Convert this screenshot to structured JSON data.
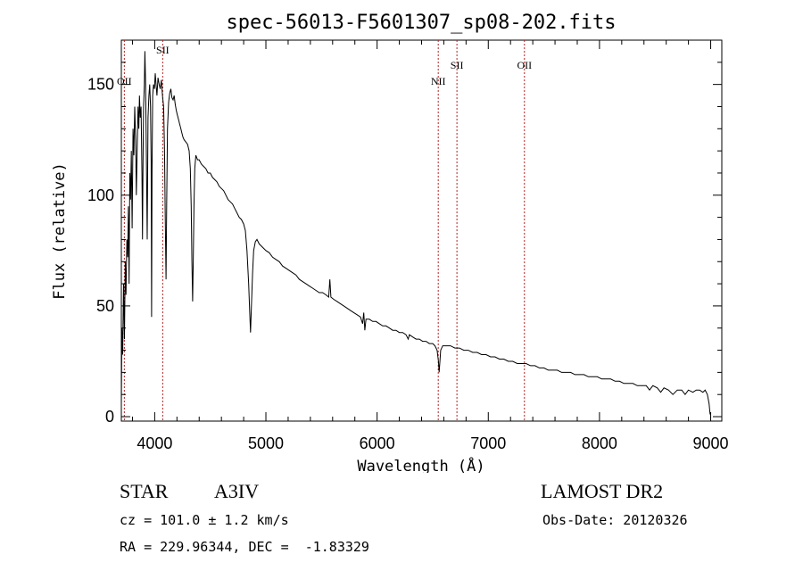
{
  "chart_data": {
    "type": "line",
    "title": "spec-56013-F5601307_sp08-202.fits",
    "xlabel": "Wavelength (Å)",
    "ylabel": "Flux (relative)",
    "xlim": [
      3700,
      9100
    ],
    "ylim": [
      -2,
      170
    ],
    "x_ticks": [
      4000,
      5000,
      6000,
      7000,
      8000,
      9000
    ],
    "y_ticks": [
      0,
      50,
      100,
      150
    ],
    "grid": false,
    "series": [
      {
        "values": [
          [
            3700,
            5
          ],
          [
            3705,
            40
          ],
          [
            3712,
            28
          ],
          [
            3720,
            60
          ],
          [
            3728,
            35
          ],
          [
            3735,
            70
          ],
          [
            3742,
            55
          ],
          [
            3750,
            80
          ],
          [
            3757,
            72
          ],
          [
            3763,
            95
          ],
          [
            3770,
            60
          ],
          [
            3776,
            110
          ],
          [
            3783,
            98
          ],
          [
            3790,
            120
          ],
          [
            3797,
            85
          ],
          [
            3805,
            130
          ],
          [
            3812,
            118
          ],
          [
            3820,
            140
          ],
          [
            3828,
            125
          ],
          [
            3835,
            100
          ],
          [
            3842,
            120
          ],
          [
            3850,
            140
          ],
          [
            3857,
            130
          ],
          [
            3863,
            145
          ],
          [
            3870,
            135
          ],
          [
            3877,
            140
          ],
          [
            3885,
            110
          ],
          [
            3890,
            80
          ],
          [
            3895,
            115
          ],
          [
            3900,
            140
          ],
          [
            3907,
            150
          ],
          [
            3912,
            165
          ],
          [
            3918,
            150
          ],
          [
            3925,
            120
          ],
          [
            3933,
            80
          ],
          [
            3940,
            135
          ],
          [
            3948,
            145
          ],
          [
            3955,
            150
          ],
          [
            3962,
            140
          ],
          [
            3968,
            115
          ],
          [
            3972,
            45
          ],
          [
            3976,
            110
          ],
          [
            3982,
            145
          ],
          [
            3990,
            150
          ],
          [
            3998,
            148
          ],
          [
            4005,
            155
          ],
          [
            4012,
            150
          ],
          [
            4020,
            145
          ],
          [
            4030,
            153
          ],
          [
            4040,
            150
          ],
          [
            4050,
            148
          ],
          [
            4060,
            152
          ],
          [
            4070,
            145
          ],
          [
            4080,
            140
          ],
          [
            4088,
            120
          ],
          [
            4095,
            90
          ],
          [
            4102,
            62
          ],
          [
            4108,
            95
          ],
          [
            4115,
            130
          ],
          [
            4125,
            142
          ],
          [
            4135,
            146
          ],
          [
            4145,
            148
          ],
          [
            4155,
            144
          ],
          [
            4165,
            143
          ],
          [
            4175,
            145
          ],
          [
            4185,
            141
          ],
          [
            4195,
            138
          ],
          [
            4205,
            136
          ],
          [
            4215,
            134
          ],
          [
            4225,
            132
          ],
          [
            4235,
            130
          ],
          [
            4245,
            128
          ],
          [
            4255,
            126
          ],
          [
            4265,
            125
          ],
          [
            4280,
            124
          ],
          [
            4295,
            123
          ],
          [
            4310,
            120
          ],
          [
            4320,
            112
          ],
          [
            4328,
            95
          ],
          [
            4335,
            70
          ],
          [
            4341,
            52
          ],
          [
            4347,
            70
          ],
          [
            4353,
            95
          ],
          [
            4360,
            112
          ],
          [
            4370,
            118
          ],
          [
            4385,
            116
          ],
          [
            4400,
            116
          ],
          [
            4420,
            114
          ],
          [
            4440,
            113
          ],
          [
            4460,
            112
          ],
          [
            4480,
            110
          ],
          [
            4500,
            110
          ],
          [
            4520,
            108
          ],
          [
            4540,
            107
          ],
          [
            4560,
            106
          ],
          [
            4580,
            104
          ],
          [
            4600,
            103
          ],
          [
            4620,
            102
          ],
          [
            4640,
            100
          ],
          [
            4660,
            98
          ],
          [
            4680,
            97
          ],
          [
            4700,
            96
          ],
          [
            4720,
            94
          ],
          [
            4740,
            92
          ],
          [
            4760,
            90
          ],
          [
            4780,
            89
          ],
          [
            4800,
            87
          ],
          [
            4815,
            84
          ],
          [
            4830,
            75
          ],
          [
            4845,
            60
          ],
          [
            4855,
            47
          ],
          [
            4862,
            38
          ],
          [
            4870,
            50
          ],
          [
            4880,
            65
          ],
          [
            4890,
            75
          ],
          [
            4905,
            79
          ],
          [
            4920,
            80
          ],
          [
            4940,
            78
          ],
          [
            4960,
            77
          ],
          [
            4980,
            76
          ],
          [
            5000,
            75
          ],
          [
            5030,
            74
          ],
          [
            5060,
            72
          ],
          [
            5090,
            71
          ],
          [
            5120,
            70
          ],
          [
            5150,
            68
          ],
          [
            5180,
            67
          ],
          [
            5210,
            66
          ],
          [
            5240,
            65
          ],
          [
            5270,
            64
          ],
          [
            5300,
            62
          ],
          [
            5330,
            61
          ],
          [
            5360,
            60
          ],
          [
            5390,
            59
          ],
          [
            5420,
            58
          ],
          [
            5450,
            57
          ],
          [
            5480,
            56
          ],
          [
            5510,
            56
          ],
          [
            5540,
            55
          ],
          [
            5565,
            54
          ],
          [
            5575,
            62
          ],
          [
            5585,
            54
          ],
          [
            5610,
            53
          ],
          [
            5640,
            52
          ],
          [
            5670,
            51
          ],
          [
            5700,
            50
          ],
          [
            5730,
            49
          ],
          [
            5760,
            48
          ],
          [
            5790,
            47
          ],
          [
            5820,
            46
          ],
          [
            5850,
            45
          ],
          [
            5870,
            42
          ],
          [
            5880,
            47
          ],
          [
            5890,
            39
          ],
          [
            5900,
            44
          ],
          [
            5930,
            44
          ],
          [
            5960,
            43
          ],
          [
            5990,
            43
          ],
          [
            6020,
            42
          ],
          [
            6050,
            41
          ],
          [
            6080,
            41
          ],
          [
            6110,
            40
          ],
          [
            6140,
            39
          ],
          [
            6170,
            39
          ],
          [
            6200,
            38
          ],
          [
            6230,
            38
          ],
          [
            6260,
            37
          ],
          [
            6280,
            35
          ],
          [
            6290,
            37
          ],
          [
            6320,
            36
          ],
          [
            6350,
            35
          ],
          [
            6380,
            35
          ],
          [
            6410,
            34
          ],
          [
            6440,
            34
          ],
          [
            6470,
            33
          ],
          [
            6500,
            33
          ],
          [
            6520,
            32
          ],
          [
            6540,
            30
          ],
          [
            6552,
            25
          ],
          [
            6558,
            20
          ],
          [
            6564,
            24
          ],
          [
            6572,
            30
          ],
          [
            6590,
            32
          ],
          [
            6620,
            32
          ],
          [
            6660,
            32
          ],
          [
            6700,
            31
          ],
          [
            6740,
            31
          ],
          [
            6780,
            30
          ],
          [
            6820,
            30
          ],
          [
            6860,
            29
          ],
          [
            6900,
            29
          ],
          [
            6940,
            28
          ],
          [
            6980,
            28
          ],
          [
            7020,
            27
          ],
          [
            7060,
            27
          ],
          [
            7100,
            26
          ],
          [
            7140,
            26
          ],
          [
            7180,
            25
          ],
          [
            7220,
            25
          ],
          [
            7260,
            24
          ],
          [
            7300,
            24
          ],
          [
            7340,
            24
          ],
          [
            7380,
            23
          ],
          [
            7420,
            23
          ],
          [
            7460,
            22
          ],
          [
            7500,
            22
          ],
          [
            7540,
            21
          ],
          [
            7580,
            21
          ],
          [
            7620,
            21
          ],
          [
            7660,
            20
          ],
          [
            7700,
            20
          ],
          [
            7740,
            20
          ],
          [
            7780,
            19
          ],
          [
            7820,
            19
          ],
          [
            7860,
            19
          ],
          [
            7900,
            18
          ],
          [
            7940,
            18
          ],
          [
            7980,
            18
          ],
          [
            8020,
            17
          ],
          [
            8060,
            17
          ],
          [
            8100,
            17
          ],
          [
            8140,
            16
          ],
          [
            8180,
            16
          ],
          [
            8220,
            15
          ],
          [
            8260,
            15
          ],
          [
            8300,
            15
          ],
          [
            8340,
            14
          ],
          [
            8380,
            14
          ],
          [
            8420,
            14
          ],
          [
            8450,
            12
          ],
          [
            8480,
            14
          ],
          [
            8520,
            13
          ],
          [
            8550,
            11
          ],
          [
            8580,
            13
          ],
          [
            8620,
            12
          ],
          [
            8660,
            10
          ],
          [
            8700,
            12
          ],
          [
            8740,
            12
          ],
          [
            8770,
            10
          ],
          [
            8800,
            12
          ],
          [
            8840,
            11
          ],
          [
            8870,
            12
          ],
          [
            8900,
            12
          ],
          [
            8930,
            11
          ],
          [
            8950,
            12
          ],
          [
            8970,
            10
          ],
          [
            8985,
            6
          ],
          [
            8995,
            1
          ]
        ]
      }
    ],
    "line_markers": [
      {
        "label": "OII",
        "wavelength": 3727
      },
      {
        "label": "SII",
        "wavelength": 4072
      },
      {
        "label": "NII",
        "wavelength": 6550
      },
      {
        "label": "SII",
        "wavelength": 6718
      },
      {
        "label": "OII",
        "wavelength": 7325
      }
    ]
  },
  "info": {
    "class": "STAR",
    "subclass": "A3IV",
    "survey": "LAMOST DR2",
    "cz": "cz = 101.0 ± 1.2 km/s",
    "obs_date": "Obs-Date: 20120326",
    "radec": "RA = 229.96344, DEC =  -1.83329"
  },
  "colors": {
    "spectrum": "#000000",
    "marker_line": "#b22222",
    "axes": "#000000"
  }
}
